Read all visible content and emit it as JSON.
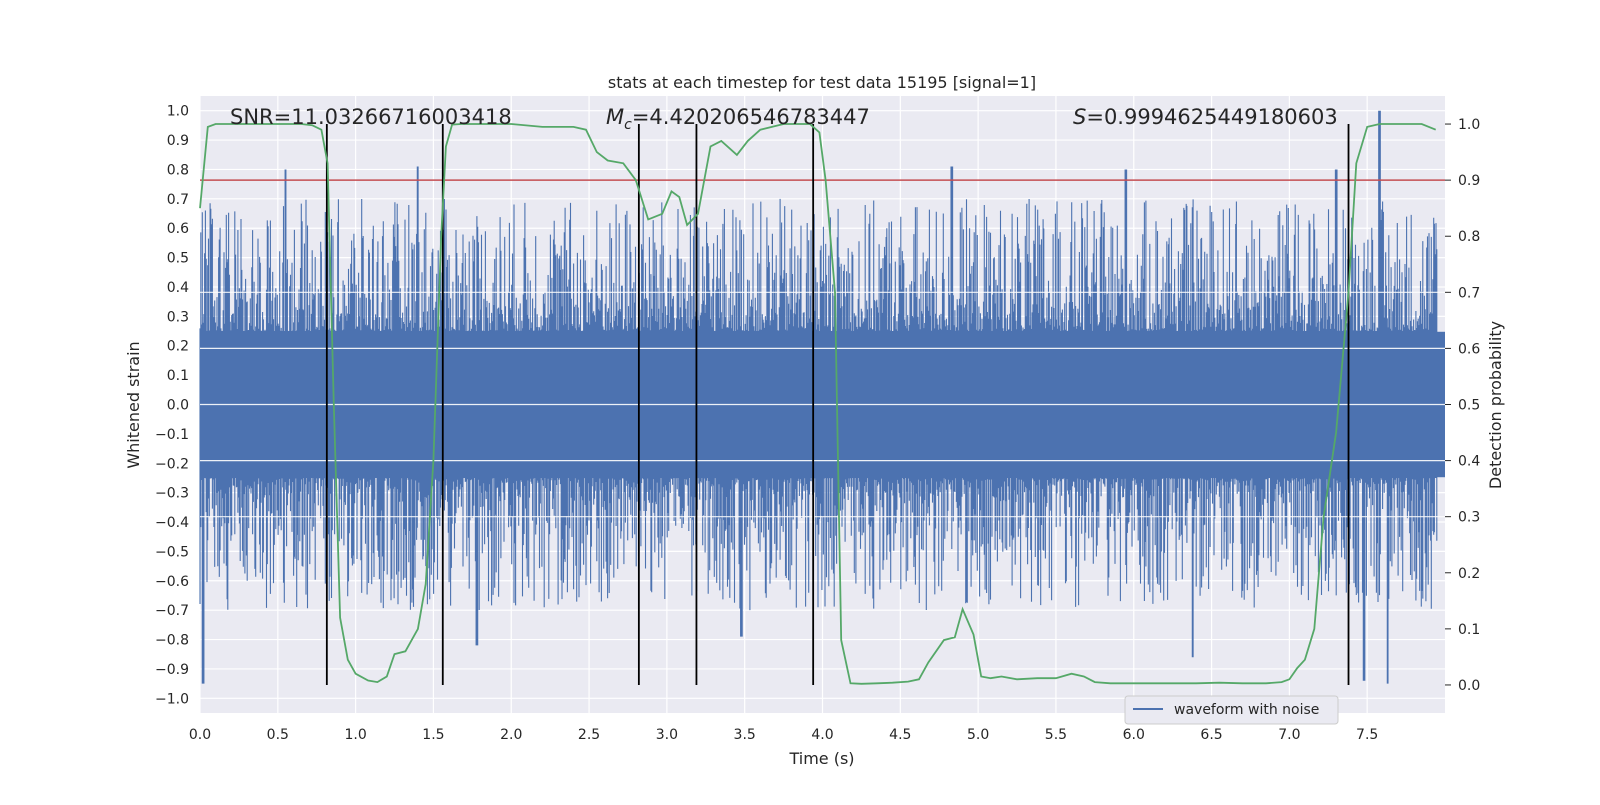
{
  "chart_data": {
    "type": "line",
    "title": "stats at each timestep for test data 15195 [signal=1]",
    "xlabel": "Time (s)",
    "ylabel_left": "Whitened strain",
    "ylabel_right": "Detection probability",
    "xlim": [
      0.0,
      8.0
    ],
    "ylim_left": [
      -1.05,
      1.05
    ],
    "ylim_right": [
      -0.05,
      1.05
    ],
    "grid": true,
    "x_ticks": [
      "0.0",
      "0.5",
      "1.0",
      "1.5",
      "2.0",
      "2.5",
      "3.0",
      "3.5",
      "4.0",
      "4.5",
      "5.0",
      "5.5",
      "6.0",
      "6.5",
      "7.0",
      "7.5"
    ],
    "y_left_ticks": [
      "1.0",
      "0.9",
      "0.8",
      "0.7",
      "0.6",
      "0.5",
      "0.4",
      "0.3",
      "0.2",
      "0.1",
      "0.0",
      "-0.1",
      "-0.2",
      "-0.3",
      "-0.4",
      "-0.5",
      "-0.6",
      "-0.7",
      "-0.8",
      "-0.9",
      "-1.0"
    ],
    "y_right_ticks": [
      "1.0",
      "0.9",
      "0.8",
      "0.7",
      "0.6",
      "0.5",
      "0.4",
      "0.3",
      "0.2",
      "0.1",
      "0.0"
    ],
    "annotations": {
      "snr": "SNR=11.03266716003418",
      "mc_symbol": "M",
      "mc_sub": "c",
      "mc_value": "=4.420206546783447",
      "s_symbol": "S",
      "s_value": "=0.9994625449180603"
    },
    "legend": {
      "label": "waveform with noise",
      "placement": "lower-right"
    },
    "colors": {
      "waveform": "#4c72b0",
      "probability": "#55a868",
      "threshold": "#c44e52",
      "markers": "#000000",
      "plot_bg": "#eaeaf2"
    },
    "threshold_right": 0.9,
    "vertical_markers_x": [
      0.815,
      1.56,
      2.82,
      3.19,
      3.94,
      7.38
    ],
    "waveform": {
      "description_series": "waveform with noise",
      "sample_count": 1600,
      "envelope_positive": 0.55,
      "envelope_negative": -0.55,
      "peak_points": [
        {
          "x": 0.02,
          "y": -0.95
        },
        {
          "x": 0.55,
          "y": 0.8
        },
        {
          "x": 1.4,
          "y": 0.81
        },
        {
          "x": 1.78,
          "y": -0.82
        },
        {
          "x": 3.48,
          "y": -0.79
        },
        {
          "x": 4.83,
          "y": 0.81
        },
        {
          "x": 5.95,
          "y": 0.8
        },
        {
          "x": 6.38,
          "y": -0.86
        },
        {
          "x": 7.48,
          "y": -0.94
        },
        {
          "x": 7.58,
          "y": 1.0
        },
        {
          "x": 7.63,
          "y": -0.95
        },
        {
          "x": 7.3,
          "y": 0.8
        }
      ]
    },
    "series": [
      {
        "name": "",
        "axis": "right",
        "x": [
          0.0,
          0.05,
          0.1,
          0.2,
          0.3,
          0.4,
          0.5,
          0.6,
          0.65,
          0.72,
          0.78,
          0.82,
          0.86,
          0.9,
          0.95,
          1.0,
          1.08,
          1.14,
          1.2,
          1.25,
          1.32,
          1.4,
          1.45,
          1.5,
          1.55,
          1.58,
          1.62,
          1.68,
          1.75,
          1.85,
          2.0,
          2.2,
          2.4,
          2.48,
          2.55,
          2.62,
          2.72,
          2.8,
          2.88,
          2.97,
          3.03,
          3.08,
          3.13,
          3.2,
          3.28,
          3.35,
          3.45,
          3.52,
          3.6,
          3.75,
          3.85,
          3.92,
          3.98,
          4.02,
          4.08,
          4.12,
          4.18,
          4.25,
          4.35,
          4.45,
          4.55,
          4.62,
          4.68,
          4.78,
          4.85,
          4.9,
          4.97,
          5.02,
          5.08,
          5.15,
          5.25,
          5.38,
          5.5,
          5.6,
          5.68,
          5.75,
          5.85,
          6.0,
          6.2,
          6.4,
          6.55,
          6.7,
          6.85,
          6.95,
          7.0,
          7.05,
          7.1,
          7.16,
          7.22,
          7.3,
          7.38,
          7.43,
          7.5,
          7.58,
          7.7,
          7.85,
          7.94
        ],
        "y": [
          0.85,
          0.995,
          1.0,
          1.0,
          1.0,
          1.0,
          1.0,
          1.0,
          1.0,
          0.998,
          0.99,
          0.93,
          0.5,
          0.12,
          0.045,
          0.02,
          0.008,
          0.005,
          0.015,
          0.055,
          0.06,
          0.1,
          0.18,
          0.4,
          0.8,
          0.96,
          0.999,
          1.0,
          1.0,
          1.0,
          1.0,
          0.995,
          0.995,
          0.99,
          0.95,
          0.935,
          0.93,
          0.9,
          0.83,
          0.84,
          0.88,
          0.87,
          0.82,
          0.84,
          0.96,
          0.97,
          0.945,
          0.97,
          0.99,
          1.0,
          1.0,
          1.0,
          0.985,
          0.9,
          0.7,
          0.08,
          0.003,
          0.002,
          0.003,
          0.004,
          0.006,
          0.01,
          0.04,
          0.08,
          0.085,
          0.135,
          0.09,
          0.015,
          0.012,
          0.015,
          0.01,
          0.012,
          0.012,
          0.02,
          0.015,
          0.005,
          0.003,
          0.003,
          0.003,
          0.003,
          0.004,
          0.003,
          0.003,
          0.005,
          0.01,
          0.03,
          0.045,
          0.1,
          0.3,
          0.45,
          0.7,
          0.93,
          0.995,
          1.0,
          1.0,
          1.0,
          0.99
        ]
      }
    ]
  }
}
